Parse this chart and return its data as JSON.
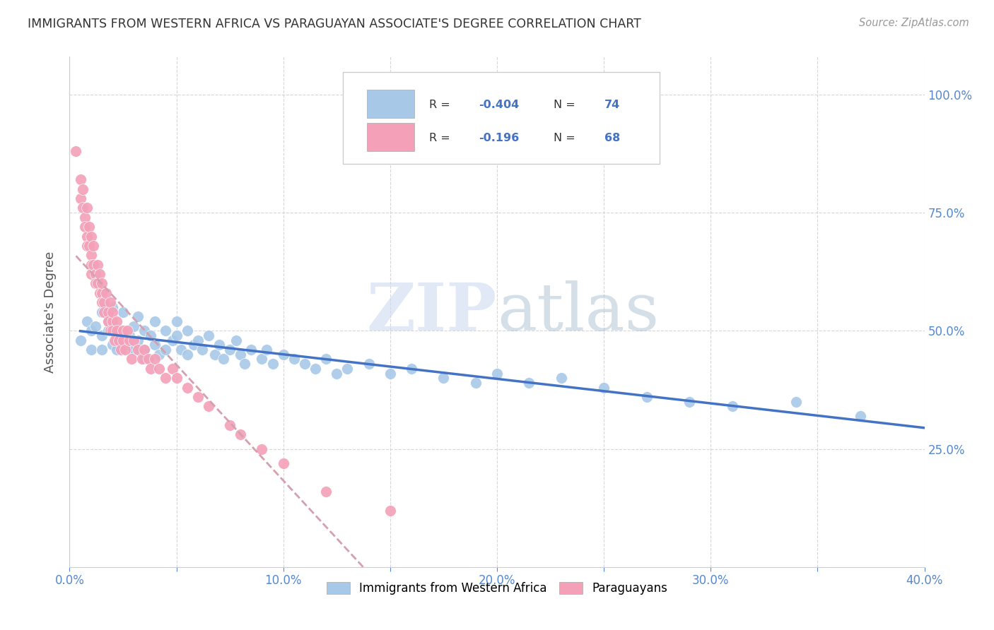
{
  "title": "IMMIGRANTS FROM WESTERN AFRICA VS PARAGUAYAN ASSOCIATE'S DEGREE CORRELATION CHART",
  "source": "Source: ZipAtlas.com",
  "ylabel": "Associate's Degree",
  "right_yticklabels": [
    "25.0%",
    "50.0%",
    "75.0%",
    "100.0%"
  ],
  "right_yticks": [
    0.25,
    0.5,
    0.75,
    1.0
  ],
  "xlim": [
    0.0,
    0.4
  ],
  "ylim": [
    0.0,
    1.08
  ],
  "xticks": [
    0.0,
    0.05,
    0.1,
    0.15,
    0.2,
    0.25,
    0.3,
    0.35,
    0.4
  ],
  "xticklabels": [
    "0.0%",
    "",
    "10.0%",
    "",
    "20.0%",
    "",
    "30.0%",
    "",
    "40.0%"
  ],
  "blue_R": -0.404,
  "blue_N": 74,
  "pink_R": -0.196,
  "pink_N": 68,
  "blue_color": "#A8C8E8",
  "pink_color": "#F4A0B8",
  "blue_line_color": "#4472C4",
  "pink_line_color": "#E8B0C0",
  "legend_label_blue": "Immigrants from Western Africa",
  "legend_label_pink": "Paraguayans",
  "blue_scatter_x": [
    0.005,
    0.008,
    0.01,
    0.01,
    0.012,
    0.015,
    0.015,
    0.015,
    0.018,
    0.018,
    0.02,
    0.02,
    0.02,
    0.022,
    0.022,
    0.025,
    0.025,
    0.028,
    0.028,
    0.03,
    0.03,
    0.032,
    0.032,
    0.035,
    0.035,
    0.035,
    0.038,
    0.04,
    0.04,
    0.042,
    0.045,
    0.045,
    0.048,
    0.05,
    0.05,
    0.052,
    0.055,
    0.055,
    0.058,
    0.06,
    0.062,
    0.065,
    0.068,
    0.07,
    0.072,
    0.075,
    0.078,
    0.08,
    0.082,
    0.085,
    0.09,
    0.092,
    0.095,
    0.1,
    0.105,
    0.11,
    0.115,
    0.12,
    0.125,
    0.13,
    0.14,
    0.15,
    0.16,
    0.175,
    0.19,
    0.2,
    0.215,
    0.23,
    0.25,
    0.27,
    0.29,
    0.31,
    0.34,
    0.37
  ],
  "blue_scatter_y": [
    0.48,
    0.52,
    0.5,
    0.46,
    0.51,
    0.49,
    0.54,
    0.46,
    0.5,
    0.52,
    0.47,
    0.51,
    0.55,
    0.48,
    0.46,
    0.5,
    0.54,
    0.47,
    0.49,
    0.51,
    0.46,
    0.53,
    0.48,
    0.5,
    0.46,
    0.44,
    0.49,
    0.52,
    0.47,
    0.45,
    0.5,
    0.46,
    0.48,
    0.49,
    0.52,
    0.46,
    0.5,
    0.45,
    0.47,
    0.48,
    0.46,
    0.49,
    0.45,
    0.47,
    0.44,
    0.46,
    0.48,
    0.45,
    0.43,
    0.46,
    0.44,
    0.46,
    0.43,
    0.45,
    0.44,
    0.43,
    0.42,
    0.44,
    0.41,
    0.42,
    0.43,
    0.41,
    0.42,
    0.4,
    0.39,
    0.41,
    0.39,
    0.4,
    0.38,
    0.36,
    0.35,
    0.34,
    0.35,
    0.32
  ],
  "pink_scatter_x": [
    0.003,
    0.005,
    0.005,
    0.006,
    0.006,
    0.007,
    0.007,
    0.008,
    0.008,
    0.008,
    0.009,
    0.009,
    0.01,
    0.01,
    0.01,
    0.01,
    0.011,
    0.011,
    0.012,
    0.012,
    0.013,
    0.013,
    0.014,
    0.014,
    0.015,
    0.015,
    0.015,
    0.016,
    0.016,
    0.017,
    0.018,
    0.018,
    0.019,
    0.019,
    0.02,
    0.02,
    0.02,
    0.021,
    0.022,
    0.022,
    0.023,
    0.024,
    0.025,
    0.025,
    0.026,
    0.027,
    0.028,
    0.029,
    0.03,
    0.032,
    0.034,
    0.035,
    0.037,
    0.038,
    0.04,
    0.042,
    0.045,
    0.048,
    0.05,
    0.055,
    0.06,
    0.065,
    0.075,
    0.08,
    0.09,
    0.1,
    0.12,
    0.15
  ],
  "pink_scatter_y": [
    0.88,
    0.82,
    0.78,
    0.76,
    0.8,
    0.74,
    0.72,
    0.76,
    0.7,
    0.68,
    0.72,
    0.68,
    0.66,
    0.64,
    0.7,
    0.62,
    0.64,
    0.68,
    0.62,
    0.6,
    0.64,
    0.6,
    0.58,
    0.62,
    0.58,
    0.56,
    0.6,
    0.56,
    0.54,
    0.58,
    0.54,
    0.52,
    0.56,
    0.5,
    0.52,
    0.54,
    0.5,
    0.48,
    0.52,
    0.5,
    0.48,
    0.46,
    0.5,
    0.48,
    0.46,
    0.5,
    0.48,
    0.44,
    0.48,
    0.46,
    0.44,
    0.46,
    0.44,
    0.42,
    0.44,
    0.42,
    0.4,
    0.42,
    0.4,
    0.38,
    0.36,
    0.34,
    0.3,
    0.28,
    0.25,
    0.22,
    0.16,
    0.12
  ]
}
